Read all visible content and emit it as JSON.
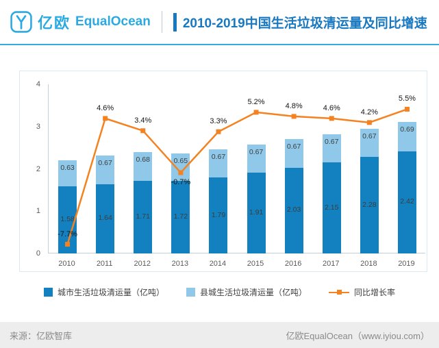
{
  "header": {
    "logo_cn": "亿欧",
    "logo_en": "EqualOcean",
    "title": "2010-2019中国生活垃圾清运量及同比增速"
  },
  "chart_data": {
    "type": "bar",
    "subtype": "stacked-bars-with-line-overlay",
    "title": "2010-2019中国生活垃圾清运量及同比增速",
    "categories": [
      "2010",
      "2011",
      "2012",
      "2013",
      "2014",
      "2015",
      "2016",
      "2017",
      "2018",
      "2019"
    ],
    "series": [
      {
        "name": "城市生活垃圾清运量（亿吨）",
        "type": "bar",
        "stack": "total",
        "color": "#1381BF",
        "values": [
          1.58,
          1.64,
          1.71,
          1.72,
          1.79,
          1.91,
          2.03,
          2.15,
          2.28,
          2.42
        ]
      },
      {
        "name": "县城生活垃圾清运量（亿吨）",
        "type": "bar",
        "stack": "total",
        "color": "#8FC8E8",
        "values": [
          0.63,
          0.67,
          0.68,
          0.65,
          0.67,
          0.67,
          0.67,
          0.67,
          0.67,
          0.69
        ]
      },
      {
        "name": "同比增长率",
        "type": "line",
        "color": "#F58220",
        "values_pct": [
          -7.7,
          4.6,
          3.4,
          -0.7,
          3.3,
          5.2,
          4.8,
          4.6,
          4.2,
          5.5
        ]
      }
    ],
    "ylim": [
      0,
      4
    ],
    "yticks": [
      0,
      1,
      2,
      3,
      4
    ],
    "secondary_ylim": [
      -8.6,
      7.94
    ],
    "pct_label_below_indices": [
      3
    ],
    "grid": false,
    "legend_position": "bottom"
  },
  "footer": {
    "source": "来源：亿欧智库",
    "brand": "亿欧EqualOcean（www.iyiou.com）"
  }
}
